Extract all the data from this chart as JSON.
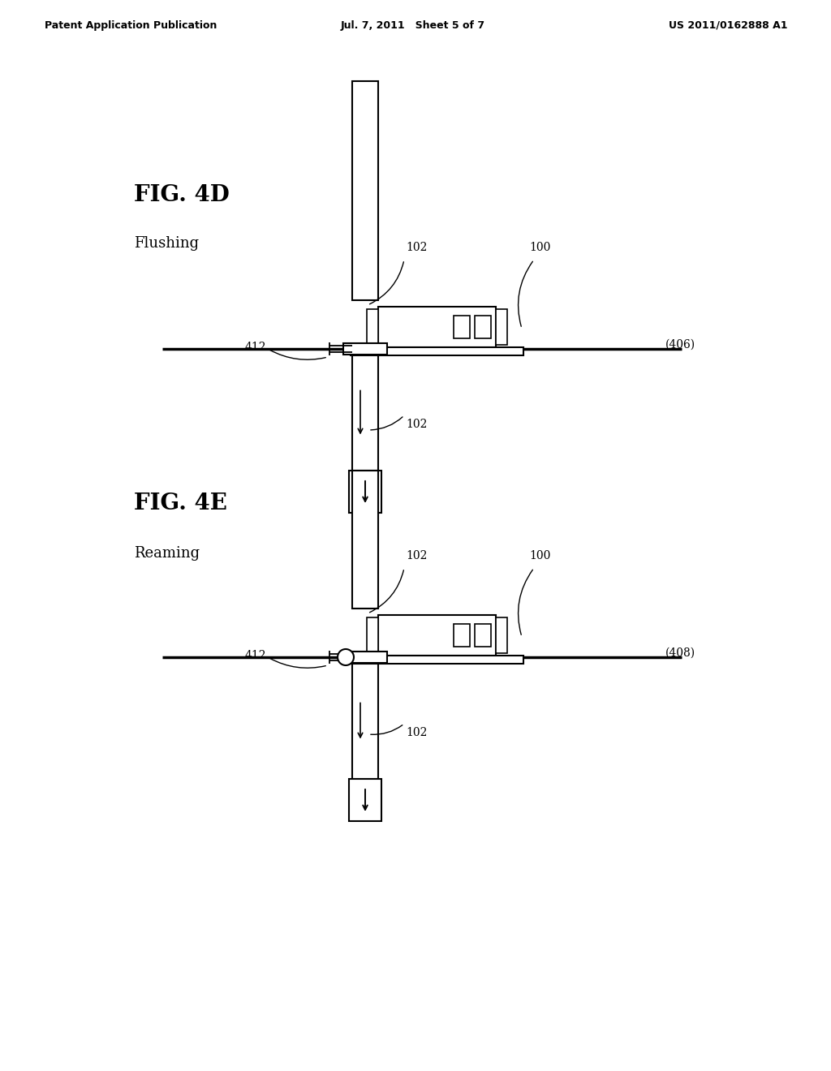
{
  "bg_color": "#ffffff",
  "line_color": "#000000",
  "header": {
    "left": "Patent Application Publication",
    "center": "Jul. 7, 2011   Sheet 5 of 7",
    "right": "US 2011/0162888 A1"
  },
  "fig4d": {
    "label": "FIG. 4D",
    "sublabel": "Flushing",
    "ref406": "(406)",
    "ref412": "412",
    "ref102_top": "102",
    "ref100": "100",
    "ref102_bot": "102"
  },
  "fig4e": {
    "label": "FIG. 4E",
    "sublabel": "Reaming",
    "ref408": "(408)",
    "ref412": "412",
    "ref102_top": "102",
    "ref100": "100",
    "ref102_bot": "102"
  }
}
